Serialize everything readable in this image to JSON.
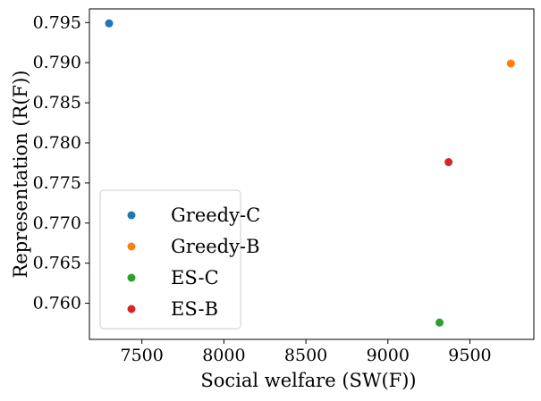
{
  "chart_data": {
    "type": "scatter",
    "title": "",
    "xlabel": "Social welfare (SW(F))",
    "ylabel": "Representation (R(F))",
    "xlim": [
      7180,
      9890
    ],
    "ylim": [
      0.7555,
      0.7967
    ],
    "xticks": [
      7500,
      8000,
      8500,
      9000,
      9500
    ],
    "xtick_labels": [
      "7500",
      "8000",
      "8500",
      "9000",
      "9500"
    ],
    "yticks": [
      0.76,
      0.765,
      0.77,
      0.775,
      0.78,
      0.785,
      0.79,
      0.795
    ],
    "ytick_labels": [
      "0.760",
      "0.765",
      "0.770",
      "0.775",
      "0.780",
      "0.785",
      "0.790",
      "0.795"
    ],
    "grid": false,
    "legend_position": "lower-left",
    "series": [
      {
        "name": "Greedy-C",
        "color": "#1f77b4",
        "x": [
          7300
        ],
        "y": [
          0.7949
        ]
      },
      {
        "name": "Greedy-B",
        "color": "#ff7f0e",
        "x": [
          9750
        ],
        "y": [
          0.7899
        ]
      },
      {
        "name": "ES-C",
        "color": "#2ca02c",
        "x": [
          9315
        ],
        "y": [
          0.7576
        ]
      },
      {
        "name": "ES-B",
        "color": "#d62728",
        "x": [
          9370
        ],
        "y": [
          0.7776
        ]
      }
    ]
  }
}
